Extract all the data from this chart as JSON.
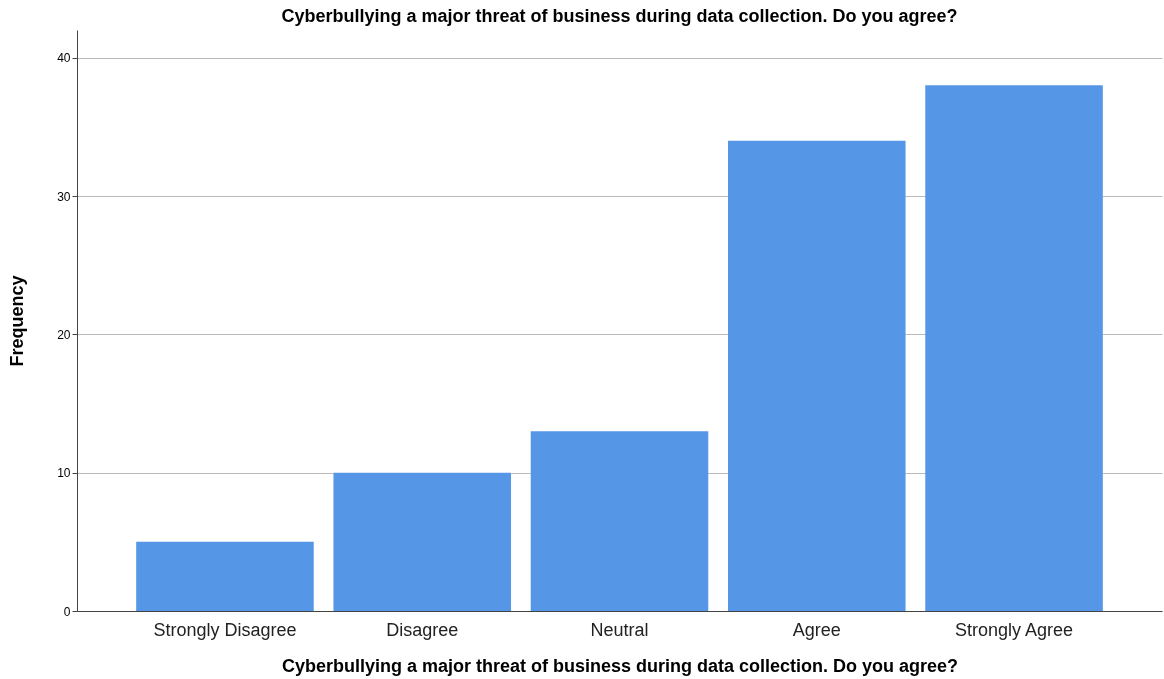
{
  "chart_data": {
    "type": "bar",
    "title": "Cyberbullying a major threat of business during data collection. Do you agree?",
    "xlabel": "Cyberbullying a major threat of business during data collection. Do you agree?",
    "ylabel": "Frequency",
    "categories": [
      "Strongly Disagree",
      "Disagree",
      "Neutral",
      "Agree",
      "Strongly Agree"
    ],
    "values": [
      5,
      10,
      13,
      34,
      38
    ],
    "color": "#5596e6",
    "ylim": [
      0,
      42
    ],
    "yticks": [
      0,
      10,
      20,
      30,
      40
    ],
    "grid": "y"
  }
}
